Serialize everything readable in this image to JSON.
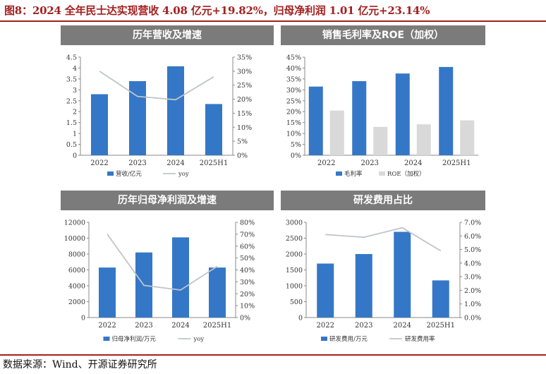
{
  "figure": {
    "title": "图8：2024 全年民士达实现营收 4.08 亿元+19.82%，归母净利润 1.01 亿元+23.14%",
    "source": "数据来源：Wind、开源证券研究所"
  },
  "colors": {
    "bar": "#3577c7",
    "bar2": "#d9d9d9",
    "line": "#c0c4c8",
    "header": "#7b7b7b",
    "accent": "#a32020"
  },
  "chart_data": [
    {
      "type": "bar",
      "title": "历年营收及增速",
      "categories": [
        "2022",
        "2023",
        "2024",
        "2025H1"
      ],
      "series": [
        {
          "name": "营收/亿元",
          "kind": "bar",
          "axis": "left",
          "values": [
            2.8,
            3.4,
            4.08,
            2.35
          ]
        },
        {
          "name": "yoy",
          "kind": "line",
          "axis": "right",
          "values": [
            30,
            21,
            19.82,
            28
          ]
        }
      ],
      "ylim_left": [
        0,
        4.5
      ],
      "ylim_right": [
        0,
        35
      ],
      "yticks_left": [
        "0",
        "0.5",
        "1",
        "1.5",
        "2",
        "2.5",
        "3",
        "3.5",
        "4",
        "4.5"
      ],
      "yticks_right": [
        "0%",
        "5%",
        "10%",
        "15%",
        "20%",
        "25%",
        "30%",
        "35%"
      ],
      "legend": "bottom"
    },
    {
      "type": "bar",
      "title": "销售毛利率及ROE（加权）",
      "categories": [
        "2022",
        "2023",
        "2024",
        "2025H1"
      ],
      "series": [
        {
          "name": "毛利率",
          "kind": "bar",
          "axis": "left",
          "values": [
            31.5,
            34,
            37.5,
            40.5
          ]
        },
        {
          "name": "ROE（加权）",
          "kind": "bar",
          "axis": "left",
          "values": [
            20.5,
            13,
            14.2,
            16
          ]
        }
      ],
      "ylim_left": [
        0,
        45
      ],
      "yticks_left": [
        "0%",
        "5%",
        "10%",
        "15%",
        "20%",
        "25%",
        "30%",
        "35%",
        "40%",
        "45%"
      ],
      "legend": "bottom"
    },
    {
      "type": "bar",
      "title": "历年归母净利润及增速",
      "categories": [
        "2022",
        "2023",
        "2024",
        "2025H1"
      ],
      "series": [
        {
          "name": "归母净利润/万元",
          "kind": "bar",
          "axis": "left",
          "values": [
            6300,
            8200,
            10100,
            6300
          ]
        },
        {
          "name": "yoy",
          "kind": "line",
          "axis": "right",
          "values": [
            70,
            27,
            23.14,
            43
          ]
        }
      ],
      "ylim_left": [
        0,
        12000
      ],
      "ylim_right": [
        0,
        80
      ],
      "yticks_left": [
        "0",
        "2000",
        "4000",
        "6000",
        "8000",
        "10000",
        "12000"
      ],
      "yticks_right": [
        "0%",
        "10%",
        "20%",
        "30%",
        "40%",
        "50%",
        "60%",
        "70%",
        "80%"
      ],
      "legend": "bottom"
    },
    {
      "type": "bar",
      "title": "研发费用占比",
      "categories": [
        "2022",
        "2023",
        "2024",
        "2025H1"
      ],
      "series": [
        {
          "name": "研发费用/万元",
          "kind": "bar",
          "axis": "left",
          "values": [
            1700,
            2000,
            2700,
            1170
          ]
        },
        {
          "name": "研发费用率",
          "kind": "line",
          "axis": "right",
          "values": [
            6.1,
            5.9,
            6.6,
            4.9
          ]
        }
      ],
      "ylim_left": [
        0,
        3000
      ],
      "ylim_right": [
        0,
        7
      ],
      "yticks_left": [
        "0",
        "500",
        "1000",
        "1500",
        "2000",
        "2500",
        "3000"
      ],
      "yticks_right": [
        "0.0%",
        "1.0%",
        "2.0%",
        "3.0%",
        "4.0%",
        "5.0%",
        "6.0%",
        "7.0%"
      ],
      "legend": "bottom"
    }
  ]
}
